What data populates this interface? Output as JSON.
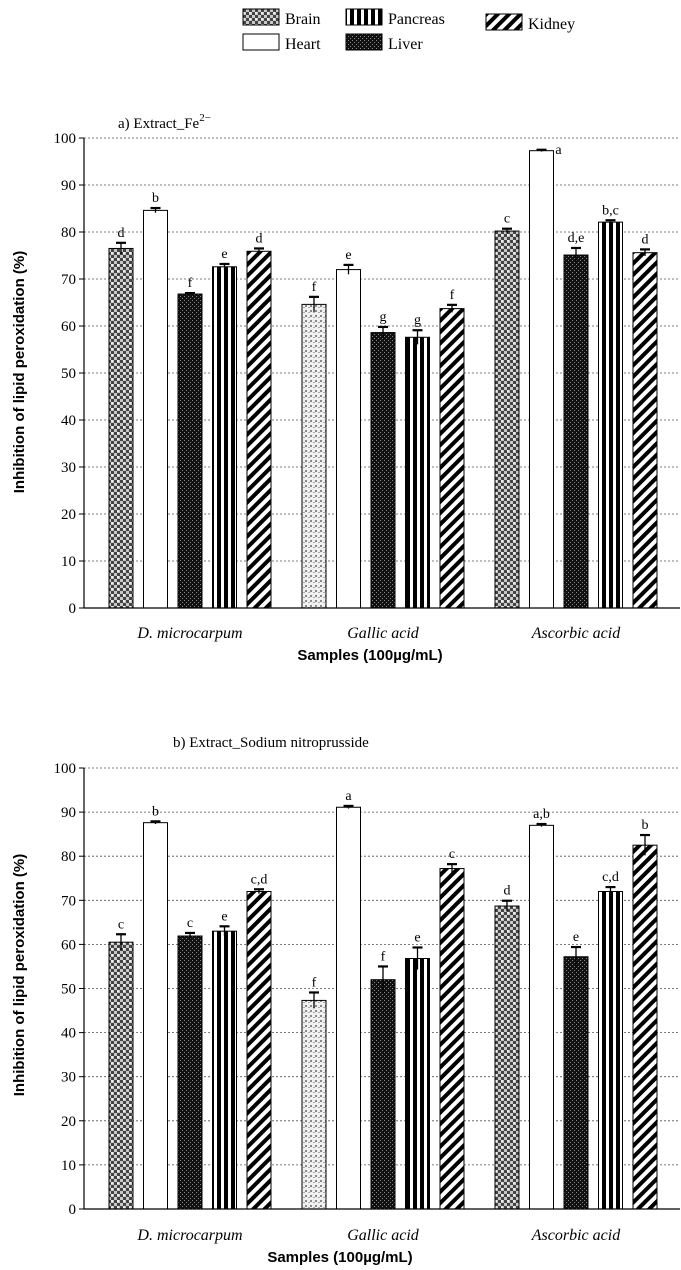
{
  "legend": [
    "Brain",
    "Heart",
    "Pancreas",
    "Liver",
    "Kidney"
  ],
  "chart_data": [
    {
      "type": "bar",
      "title": "a) Extract_Fe",
      "title_superscript": "2−",
      "xlabel": "Samples (100µg/mL)",
      "ylabel": "Inhibition of lipid peroxidation (%)",
      "ylim": [
        0,
        100
      ],
      "yticks": [
        0,
        10,
        20,
        30,
        40,
        50,
        60,
        70,
        80,
        90,
        100
      ],
      "grid": true,
      "categories": [
        "D. microcarpum",
        "Gallic acid",
        "Ascorbic acid"
      ],
      "series": [
        {
          "name": "Brain",
          "values": [
            76.5,
            64.6,
            80.2
          ],
          "errors": [
            1.2,
            1.6,
            0.5
          ],
          "labels": [
            "d",
            "f",
            "c"
          ]
        },
        {
          "name": "Heart",
          "values": [
            84.6,
            72.0,
            97.3
          ],
          "errors": [
            0.5,
            1.0,
            0.2
          ],
          "labels": [
            "b",
            "e",
            "a"
          ]
        },
        {
          "name": "Liver",
          "values": [
            66.8,
            58.6,
            75.1
          ],
          "errors": [
            0.2,
            1.2,
            1.5
          ],
          "labels": [
            "f",
            "g",
            "d,e"
          ]
        },
        {
          "name": "Pancreas",
          "values": [
            72.6,
            57.6,
            82.1
          ],
          "errors": [
            0.6,
            1.5,
            0.4
          ],
          "labels": [
            "e",
            "g",
            "b,c"
          ]
        },
        {
          "name": "Kidney",
          "values": [
            75.9,
            63.7,
            75.6
          ],
          "errors": [
            0.6,
            0.8,
            0.7
          ],
          "labels": [
            "d",
            "f",
            "d"
          ]
        }
      ]
    },
    {
      "type": "bar",
      "title": "b) Extract_Sodium nitroprusside",
      "xlabel": "Samples (100µg/mL)",
      "ylabel": "Inhibition of lipid peroxidation (%)",
      "ylim": [
        0,
        100
      ],
      "yticks": [
        0,
        10,
        20,
        30,
        40,
        50,
        60,
        70,
        80,
        90,
        100
      ],
      "grid": true,
      "categories": [
        "D. microcarpum",
        "Gallic acid",
        "Ascorbic acid"
      ],
      "series": [
        {
          "name": "Brain",
          "values": [
            60.5,
            47.3,
            68.7
          ],
          "errors": [
            1.8,
            1.8,
            1.2
          ],
          "labels": [
            "c",
            "f",
            "d"
          ]
        },
        {
          "name": "Heart",
          "values": [
            87.6,
            91.1,
            87.0
          ],
          "errors": [
            0.3,
            0.3,
            0.3
          ],
          "labels": [
            "b",
            "a",
            "a,b"
          ]
        },
        {
          "name": "Liver",
          "values": [
            61.9,
            52.0,
            57.2
          ],
          "errors": [
            0.7,
            3.0,
            2.2
          ],
          "labels": [
            "c",
            "f",
            "e"
          ]
        },
        {
          "name": "Pancreas",
          "values": [
            63.0,
            56.8,
            72.0
          ],
          "errors": [
            1.1,
            2.5,
            1.0
          ],
          "labels": [
            "e",
            "e",
            "c,d"
          ]
        },
        {
          "name": "Kidney",
          "values": [
            72.0,
            77.2,
            82.5
          ],
          "errors": [
            0.5,
            1.0,
            2.3
          ],
          "labels": [
            "c,d",
            "c",
            "b"
          ]
        }
      ]
    }
  ]
}
